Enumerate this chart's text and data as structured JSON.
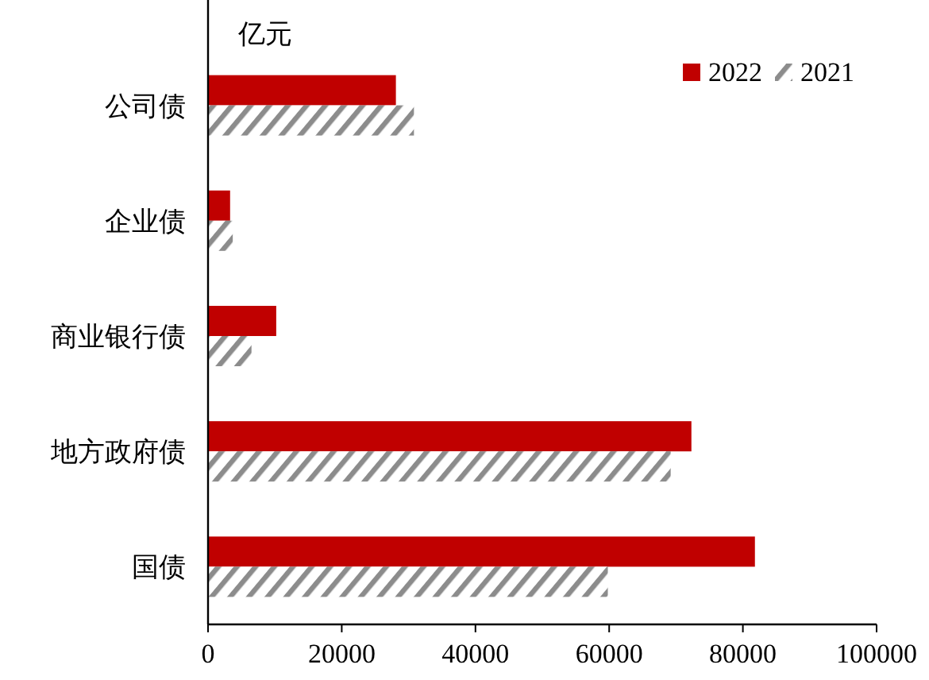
{
  "chart_data": {
    "type": "bar",
    "orientation": "horizontal",
    "xlabel": "亿元",
    "categories": [
      "公司债",
      "企业债",
      "商业银行债",
      "地方政府债",
      "国债"
    ],
    "series": [
      {
        "name": "2022",
        "color": "#c00000",
        "values": [
          28100,
          3300,
          10200,
          72300,
          81800
        ]
      },
      {
        "name": "2021",
        "color": "#8c8c8c",
        "values": [
          30800,
          3700,
          6500,
          69200,
          59800
        ]
      }
    ],
    "xlim": [
      0,
      100000
    ],
    "xticks": [
      0,
      20000,
      40000,
      60000,
      80000,
      100000
    ],
    "legend": "top right",
    "grid": false
  }
}
